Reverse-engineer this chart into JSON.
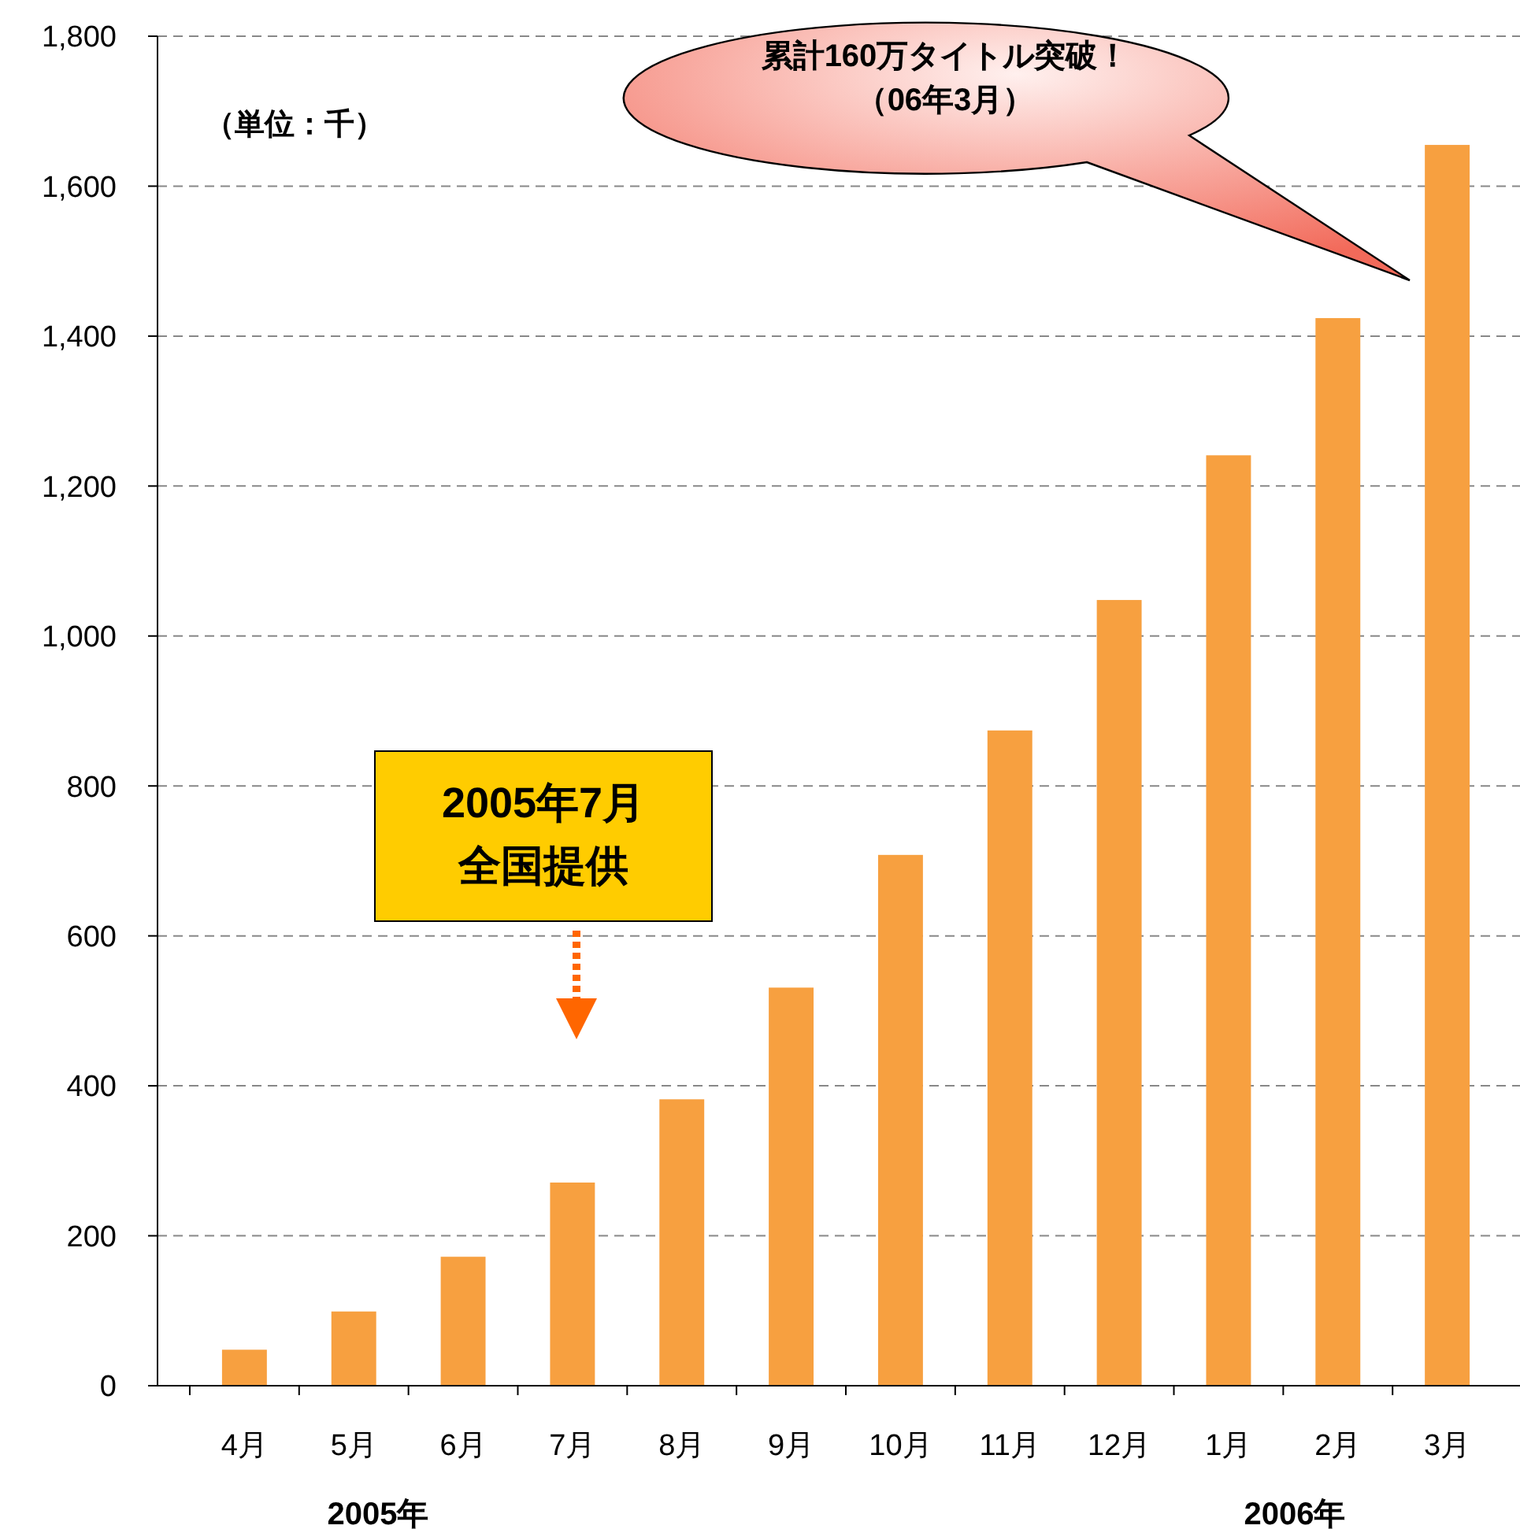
{
  "chart_data": {
    "type": "bar",
    "categories": [
      "4月",
      "5月",
      "6月",
      "7月",
      "8月",
      "9月",
      "10月",
      "11月",
      "12月",
      "1月",
      "2月",
      "3月"
    ],
    "values": [
      48,
      99,
      172,
      271,
      382,
      531,
      708,
      874,
      1048,
      1241,
      1424,
      1655
    ],
    "color": "#f7a040",
    "ylim": [
      0,
      1800
    ],
    "yticks": [
      0,
      200,
      400,
      600,
      800,
      {
        "value": 1000,
        "label": "1,000"
      },
      {
        "value": 1200,
        "label": "1,200"
      },
      {
        "value": 1400,
        "label": "1,400"
      },
      {
        "value": 1600,
        "label": "1,600"
      },
      {
        "value": 1800,
        "label": "1,800"
      }
    ],
    "grid": "y",
    "annotations": [
      "（単位：千）",
      "累計160万タイトル突破！",
      "（06年3月）",
      "2005年7月",
      "全国提供",
      "2005年",
      "2006年"
    ]
  }
}
